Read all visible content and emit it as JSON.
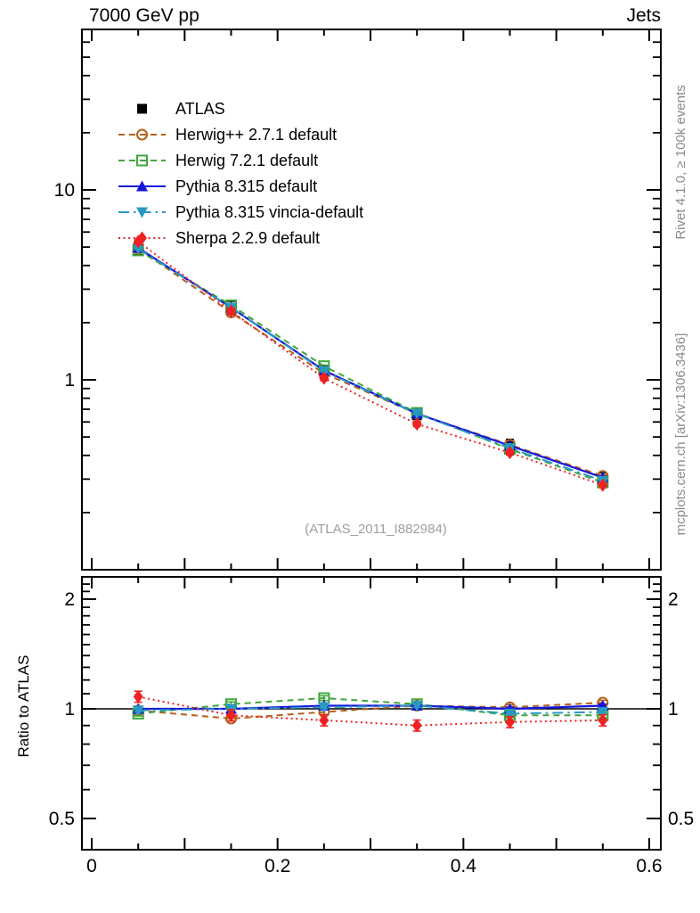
{
  "header": {
    "title_left": "7000 GeV pp",
    "title_right": "Jets"
  },
  "side_notes": {
    "top": "Rivet 4.1.0, ≥ 100k events",
    "bottom": "mcplots.cern.ch [arXiv:1306.3436]"
  },
  "watermark": {
    "text": "(ATLAS_2011_I882984)"
  },
  "ratio_panel": {
    "ylabel": "Ratio to ATLAS"
  },
  "colors": {
    "atlas": "#000000",
    "herwigpp": "#b4611a",
    "herwig7": "#3fa63c",
    "pythia": "#1616dd",
    "vincia": "#2a99c0",
    "sherpa": "#ee2222",
    "gray_text": "#8a8a8a",
    "watermark_gray": "#9e9e9e"
  },
  "chart_data": [
    {
      "type": "line",
      "panel": "main",
      "x": [
        0.05,
        0.15,
        0.25,
        0.35,
        0.45,
        0.55
      ],
      "x_axis": {
        "range": [
          0,
          0.6
        ],
        "labeled_ticks": [],
        "minor_step": 0.05
      },
      "y_axis": {
        "scale": "log",
        "range": [
          0.1,
          70
        ],
        "labeled_ticks": [
          {
            "value": 10,
            "label": "10"
          },
          {
            "value": 1,
            "label": "1"
          }
        ]
      },
      "legend_position": "top-left",
      "series": [
        {
          "name": "ATLAS",
          "color_key": "atlas",
          "marker": "square-filled",
          "line": "none",
          "yerr_rel": 0.08,
          "values": [
            4.95,
            2.4,
            1.1,
            0.65,
            0.45,
            0.3
          ]
        },
        {
          "name": "Herwig++ 2.7.1 default",
          "color_key": "herwigpp",
          "marker": "circle-open",
          "line": "dashed",
          "yerr_rel": 0.012,
          "values": [
            4.9,
            2.26,
            1.08,
            0.663,
            0.455,
            0.312
          ]
        },
        {
          "name": "Herwig 7.2.1 default",
          "color_key": "herwig7",
          "marker": "square-open",
          "line": "dashed",
          "yerr_rel": 0.012,
          "values": [
            4.8,
            2.47,
            1.18,
            0.67,
            0.432,
            0.288
          ]
        },
        {
          "name": "Pythia 8.315 default",
          "color_key": "pythia",
          "marker": "triangle-up-filled",
          "line": "solid",
          "yerr_rel": 0.01,
          "values": [
            4.95,
            2.4,
            1.12,
            0.663,
            0.45,
            0.306
          ]
        },
        {
          "name": "Pythia 8.315 vincia-default",
          "color_key": "vincia",
          "marker": "triangle-down-filled",
          "line": "dashdot",
          "yerr_rel": 0.01,
          "values": [
            4.9,
            2.4,
            1.11,
            0.663,
            0.437,
            0.294
          ]
        },
        {
          "name": "Sherpa 2.2.9 default",
          "color_key": "sherpa",
          "marker": "diamond-filled",
          "line": "dotted",
          "yerr_rel": 0.03,
          "values": [
            5.35,
            2.3,
            1.02,
            0.585,
            0.414,
            0.279
          ]
        }
      ]
    },
    {
      "type": "line",
      "panel": "ratio",
      "ylabel": "Ratio to ATLAS",
      "reference_line": 1,
      "x": [
        0.05,
        0.15,
        0.25,
        0.35,
        0.45,
        0.55
      ],
      "x_axis": {
        "range": [
          0,
          0.6
        ],
        "minor_step": 0.05,
        "labeled_ticks": [
          {
            "value": 0,
            "label": "0"
          },
          {
            "value": 0.2,
            "label": "0.2"
          },
          {
            "value": 0.4,
            "label": "0.4"
          },
          {
            "value": 0.6,
            "label": "0.6"
          }
        ]
      },
      "y_axis": {
        "scale": "log",
        "range": [
          0.41,
          2.33
        ],
        "labels_both_sides": true,
        "labeled_ticks": [
          {
            "value": 2,
            "label": "2"
          },
          {
            "value": 1,
            "label": "1"
          },
          {
            "value": 0.5,
            "label": "0.5"
          }
        ]
      },
      "series": [
        {
          "name": "Herwig++ 2.7.1 default",
          "color_key": "herwigpp",
          "marker": "circle-open",
          "line": "dashed",
          "yerr_rel": 0.015,
          "values": [
            0.99,
            0.94,
            0.98,
            1.02,
            1.01,
            1.04
          ]
        },
        {
          "name": "Herwig 7.2.1 default",
          "color_key": "herwig7",
          "marker": "square-open",
          "line": "dashed",
          "yerr_rel": 0.015,
          "values": [
            0.97,
            1.03,
            1.07,
            1.03,
            0.96,
            0.96
          ]
        },
        {
          "name": "Pythia 8.315 default",
          "color_key": "pythia",
          "marker": "triangle-up-filled",
          "line": "solid",
          "yerr_rel": 0.01,
          "values": [
            1.0,
            1.0,
            1.02,
            1.02,
            1.0,
            1.02
          ]
        },
        {
          "name": "Pythia 8.315 vincia-default",
          "color_key": "vincia",
          "marker": "triangle-down-filled",
          "line": "dashdot",
          "yerr_rel": 0.01,
          "values": [
            0.99,
            1.0,
            1.01,
            1.02,
            0.97,
            0.98
          ]
        },
        {
          "name": "Sherpa 2.2.9 default",
          "color_key": "sherpa",
          "marker": "diamond-filled",
          "line": "dotted",
          "yerr_rel": 0.035,
          "values": [
            1.08,
            0.96,
            0.93,
            0.9,
            0.92,
            0.93
          ]
        }
      ]
    }
  ]
}
